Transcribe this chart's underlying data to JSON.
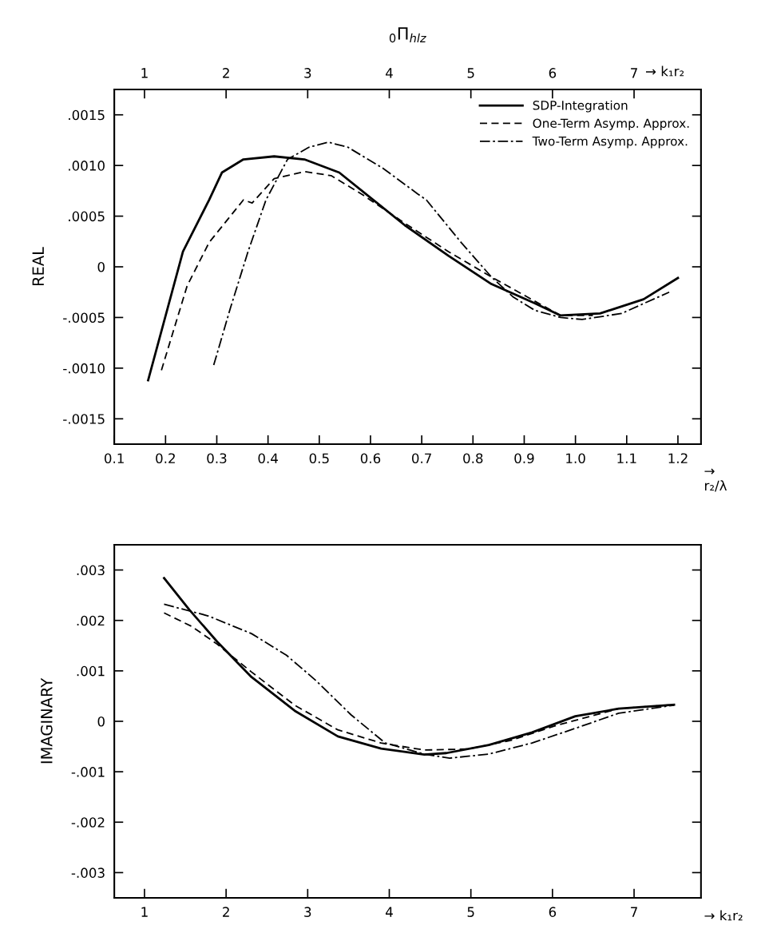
{
  "chart_data": [
    {
      "type": "line",
      "title": "$_{0}$Π$_{hlz}$",
      "ylabel": "REAL",
      "xlabel": "→\nr₂/λ",
      "x2label": "→ k₁r₂",
      "xlim": [
        0.1,
        1.245
      ],
      "xticks": [
        0.1,
        0.2,
        0.3,
        0.4,
        0.5,
        0.6,
        0.7,
        0.8,
        0.9,
        {
          "value": 1.0,
          "label": "1.0"
        },
        1.1,
        1.2
      ],
      "x2lim": [
        0.63,
        7.82
      ],
      "x2ticks": [
        1,
        2,
        3,
        4,
        5,
        6,
        7
      ],
      "ylim": [
        -0.00175,
        0.00175
      ],
      "yticks": [
        {
          "value": -0.0015,
          "label": "-.0015"
        },
        {
          "value": -0.001,
          "label": "-.0010"
        },
        {
          "value": -0.0005,
          "label": "-.0005"
        },
        {
          "value": 0,
          "label": "0"
        },
        {
          "value": 0.0005,
          "label": ".0005"
        },
        {
          "value": 0.001,
          "label": ".0010"
        },
        {
          "value": 0.0015,
          "label": ".0015"
        }
      ],
      "legend": "top right",
      "grid": false,
      "series": [
        {
          "name": "SDP-Integration",
          "color": "#000000",
          "line_style": "solid",
          "x": [
            0.166,
            0.234,
            0.285,
            0.31,
            0.352,
            0.412,
            0.471,
            0.539,
            0.608,
            0.667,
            0.752,
            0.836,
            0.921,
            0.971,
            1.048,
            1.133,
            1.2
          ],
          "values": [
            -0.00112,
            0.00015,
            0.00066,
            0.00093,
            0.00106,
            0.00109,
            0.00106,
            0.00093,
            0.00065,
            0.00041,
            0.00011,
            -0.00017,
            -0.00036,
            -0.00048,
            -0.00046,
            -0.00032,
            -0.00011
          ]
        },
        {
          "name": "One-Term Asymp. Approx.",
          "color": "#000000",
          "line_style": "dashed",
          "x": [
            0.192,
            0.242,
            0.285,
            0.352,
            0.369,
            0.412,
            0.471,
            0.523,
            0.582,
            0.667,
            0.752,
            0.836,
            0.921,
            0.971,
            1.034
          ],
          "values": [
            -0.00102,
            -0.00019,
            0.00024,
            0.00066,
            0.00063,
            0.00087,
            0.00094,
            0.0009,
            0.00072,
            0.00043,
            0.00015,
            -0.0001,
            -0.00034,
            -0.00048,
            -0.00048
          ]
        },
        {
          "name": "Two-Term Asymp. Approx.",
          "color": "#000000",
          "line_style": "dashdot",
          "x": [
            0.294,
            0.327,
            0.361,
            0.396,
            0.438,
            0.48,
            0.518,
            0.556,
            0.625,
            0.692,
            0.709,
            0.777,
            0.836,
            0.879,
            0.921,
            0.971,
            1.013,
            1.09,
            1.183
          ],
          "values": [
            -0.00097,
            -0.0004,
            0.00015,
            0.00066,
            0.00106,
            0.00118,
            0.00123,
            0.00118,
            0.00097,
            0.00072,
            0.00066,
            0.00024,
            -0.0001,
            -0.0003,
            -0.00043,
            -0.0005,
            -0.00052,
            -0.00046,
            -0.00025
          ]
        }
      ]
    },
    {
      "type": "line",
      "ylabel": "IMAGINARY",
      "xlabel": "→ k₁r₂",
      "xlim": [
        0.63,
        7.82
      ],
      "xticks": [
        1,
        2,
        3,
        4,
        5,
        6,
        7
      ],
      "ylim": [
        -0.0035,
        0.0035
      ],
      "yticks": [
        {
          "value": -0.003,
          "label": "-.003"
        },
        {
          "value": -0.002,
          "label": "-.002"
        },
        {
          "value": -0.001,
          "label": "-.001"
        },
        {
          "value": 0,
          "label": "0"
        },
        {
          "value": 0.001,
          "label": ".001"
        },
        {
          "value": 0.002,
          "label": ".002"
        },
        {
          "value": 0.003,
          "label": ".003"
        }
      ],
      "grid": false,
      "series": [
        {
          "color": "#000000",
          "line_style": "solid",
          "x": [
            1.24,
            1.55,
            1.89,
            2.31,
            2.84,
            3.37,
            3.9,
            4.43,
            4.7,
            5.22,
            5.75,
            6.28,
            6.81,
            7.49
          ],
          "values": [
            0.00284,
            0.00221,
            0.00158,
            0.00088,
            0.00021,
            -0.0003,
            -0.00054,
            -0.00066,
            -0.00063,
            -0.00047,
            -0.00022,
            0.0001,
            0.00025,
            0.00033
          ]
        },
        {
          "color": "#000000",
          "line_style": "dashed",
          "x": [
            1.24,
            1.58,
            1.89,
            2.31,
            2.84,
            3.37,
            3.9,
            4.43,
            4.96,
            5.49,
            6.01,
            6.81,
            7.49
          ],
          "values": [
            0.00215,
            0.00188,
            0.00153,
            0.00098,
            0.00032,
            -0.00017,
            -0.00043,
            -0.00057,
            -0.00055,
            -0.00038,
            -0.0001,
            0.00025,
            0.00033
          ]
        },
        {
          "color": "#000000",
          "line_style": "dashdot",
          "x": [
            1.24,
            1.78,
            2.31,
            2.74,
            3.1,
            3.53,
            3.95,
            4.43,
            4.74,
            5.22,
            5.75,
            6.28,
            6.81,
            7.49
          ],
          "values": [
            0.00232,
            0.00209,
            0.00174,
            0.00131,
            0.00081,
            0.00013,
            -0.00043,
            -0.00065,
            -0.00073,
            -0.00065,
            -0.00043,
            -0.00014,
            0.00016,
            0.00032
          ]
        }
      ]
    }
  ]
}
